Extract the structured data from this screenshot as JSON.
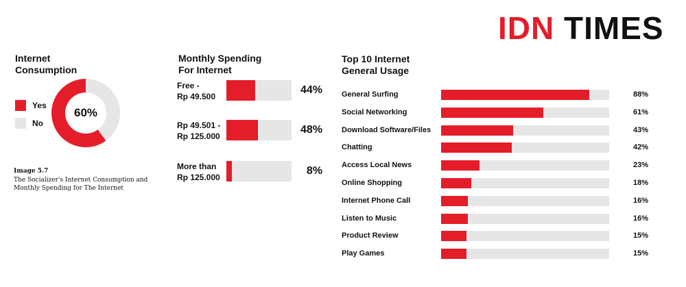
{
  "logo": {
    "part1": "IDN",
    "part2": "TIMES"
  },
  "colors": {
    "accent": "#e31e2a",
    "track": "#e6e6e6"
  },
  "caption": {
    "title": "Image 5.7",
    "text": "The Socializer's Internet Consumption and Monthly Spending for The Internet"
  },
  "chart_data": [
    {
      "type": "pie",
      "title": "Internet Consumption",
      "center_label": "60%",
      "slices": [
        {
          "name": "Yes",
          "value": 60
        },
        {
          "name": "No",
          "value": 40
        }
      ]
    },
    {
      "type": "bar",
      "title": "Monthly Spending For Internet",
      "categories": [
        "Free - Rp 49.500",
        "Rp 49.501 - Rp 125.000",
        "More than Rp 125.000"
      ],
      "values": [
        44,
        48,
        8
      ],
      "labels": [
        "44%",
        "48%",
        "8%"
      ],
      "ylim": [
        0,
        100
      ]
    },
    {
      "type": "bar",
      "title": "Top 10 Internet General Usage",
      "categories": [
        "General Surfing",
        "Social Networking",
        "Download Software/Files",
        "Chatting",
        "Access Local News",
        "Online Shopping",
        "Internet Phone Call",
        "Listen to Music",
        "Product Review",
        "Play Games"
      ],
      "values": [
        88,
        61,
        43,
        42,
        23,
        18,
        16,
        16,
        15,
        15
      ],
      "labels": [
        "88%",
        "61%",
        "43%",
        "42%",
        "23%",
        "18%",
        "16%",
        "16%",
        "15%",
        "15%"
      ],
      "ylim": [
        0,
        100
      ]
    }
  ]
}
